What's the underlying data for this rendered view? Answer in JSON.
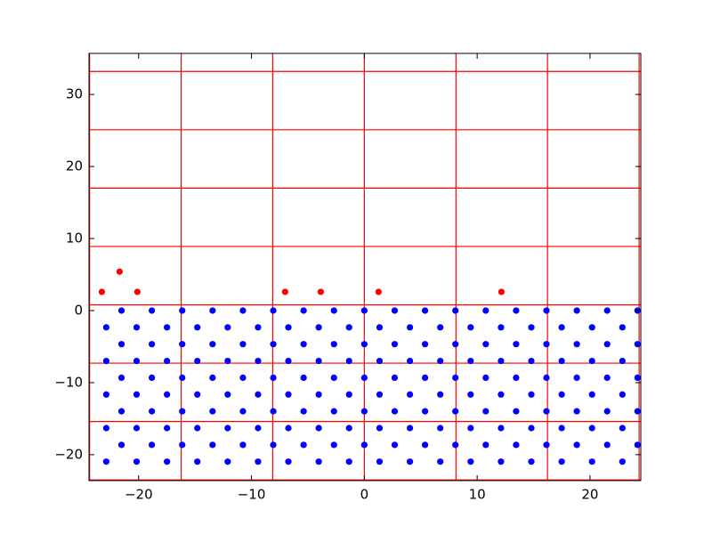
{
  "chart_data": {
    "type": "scatter",
    "xlim": [
      -24.4,
      24.5
    ],
    "ylim": [
      -23.6,
      35.7
    ],
    "xticks": [
      {
        "value": -20,
        "label": "−20"
      },
      {
        "value": -10,
        "label": "−10"
      },
      0,
      10,
      20
    ],
    "yticks": [
      {
        "value": -20,
        "label": "−20"
      },
      {
        "value": -10,
        "label": "−10"
      },
      0,
      10,
      20,
      30
    ],
    "line_color": "#ff0000",
    "vlines": [
      -24.35,
      -16.23,
      -8.12,
      0,
      8.12,
      16.23,
      24.35
    ],
    "hlines": [
      33.2,
      25.1,
      17.0,
      8.9,
      0.8,
      -7.3,
      -15.4,
      -23.5
    ],
    "series": [
      {
        "color": "#0000ff",
        "x": [
          -21.52,
          -18.83,
          -16.14,
          -13.45,
          -10.76,
          -8.07,
          -5.38,
          -2.69,
          0,
          2.69,
          5.38,
          8.07,
          10.76,
          13.45,
          16.14,
          18.83,
          21.52,
          24.21,
          -22.87,
          -20.18,
          -17.49,
          -14.8,
          -12.11,
          -9.42,
          -6.73,
          -4.04,
          -1.35,
          1.35,
          4.04,
          6.73,
          9.42,
          12.11,
          14.8,
          17.49,
          20.18,
          22.87,
          -21.52,
          -18.83,
          -16.14,
          -13.45,
          -10.76,
          -8.07,
          -5.38,
          -2.69,
          0,
          2.69,
          5.38,
          8.07,
          10.76,
          13.45,
          16.14,
          18.83,
          21.52,
          24.21,
          -22.87,
          -20.18,
          -17.49,
          -14.8,
          -12.11,
          -9.42,
          -6.73,
          -4.04,
          -1.35,
          1.35,
          4.04,
          6.73,
          9.42,
          12.11,
          14.8,
          17.49,
          20.18,
          22.87,
          -21.52,
          -18.83,
          -16.14,
          -13.45,
          -10.76,
          -8.07,
          -5.38,
          -2.69,
          0,
          2.69,
          5.38,
          8.07,
          10.76,
          13.45,
          16.14,
          18.83,
          21.52,
          24.21,
          -22.87,
          -20.18,
          -17.49,
          -14.8,
          -12.11,
          -9.42,
          -6.73,
          -4.04,
          -1.35,
          1.35,
          4.04,
          6.73,
          9.42,
          12.11,
          14.8,
          17.49,
          20.18,
          22.87,
          -21.52,
          -18.83,
          -16.14,
          -13.45,
          -10.76,
          -8.07,
          -5.38,
          -2.69,
          0,
          2.69,
          5.38,
          8.07,
          10.76,
          13.45,
          16.14,
          18.83,
          21.52,
          24.21,
          -22.87,
          -20.18,
          -17.49,
          -14.8,
          -12.11,
          -9.42,
          -6.73,
          -4.04,
          -1.35,
          1.35,
          4.04,
          6.73,
          9.42,
          12.11,
          14.8,
          17.49,
          20.18,
          22.87,
          -21.52,
          -18.83,
          -16.14,
          -13.45,
          -10.76,
          -8.07,
          -5.38,
          -2.69,
          0,
          2.69,
          5.38,
          8.07,
          10.76,
          13.45,
          16.14,
          18.83,
          21.52,
          24.21,
          -22.87,
          -20.18,
          -17.49,
          -14.8,
          -12.11,
          -9.42,
          -6.73,
          -4.04,
          -1.35,
          1.35,
          4.04,
          6.73,
          9.42,
          12.11,
          14.8,
          17.49,
          20.18,
          22.87
        ],
        "y": [
          0,
          0,
          0,
          0,
          0,
          0,
          0,
          0,
          0,
          0,
          0,
          0,
          0,
          0,
          0,
          0,
          0,
          0,
          -2.33,
          -2.33,
          -2.33,
          -2.33,
          -2.33,
          -2.33,
          -2.33,
          -2.33,
          -2.33,
          -2.33,
          -2.33,
          -2.33,
          -2.33,
          -2.33,
          -2.33,
          -2.33,
          -2.33,
          -2.33,
          -4.66,
          -4.66,
          -4.66,
          -4.66,
          -4.66,
          -4.66,
          -4.66,
          -4.66,
          -4.66,
          -4.66,
          -4.66,
          -4.66,
          -4.66,
          -4.66,
          -4.66,
          -4.66,
          -4.66,
          -4.66,
          -6.99,
          -6.99,
          -6.99,
          -6.99,
          -6.99,
          -6.99,
          -6.99,
          -6.99,
          -6.99,
          -6.99,
          -6.99,
          -6.99,
          -6.99,
          -6.99,
          -6.99,
          -6.99,
          -6.99,
          -6.99,
          -9.32,
          -9.32,
          -9.32,
          -9.32,
          -9.32,
          -9.32,
          -9.32,
          -9.32,
          -9.32,
          -9.32,
          -9.32,
          -9.32,
          -9.32,
          -9.32,
          -9.32,
          -9.32,
          -9.32,
          -9.32,
          -11.65,
          -11.65,
          -11.65,
          -11.65,
          -11.65,
          -11.65,
          -11.65,
          -11.65,
          -11.65,
          -11.65,
          -11.65,
          -11.65,
          -11.65,
          -11.65,
          -11.65,
          -11.65,
          -11.65,
          -11.65,
          -13.98,
          -13.98,
          -13.98,
          -13.98,
          -13.98,
          -13.98,
          -13.98,
          -13.98,
          -13.98,
          -13.98,
          -13.98,
          -13.98,
          -13.98,
          -13.98,
          -13.98,
          -13.98,
          -13.98,
          -13.98,
          -16.31,
          -16.31,
          -16.31,
          -16.31,
          -16.31,
          -16.31,
          -16.31,
          -16.31,
          -16.31,
          -16.31,
          -16.31,
          -16.31,
          -16.31,
          -16.31,
          -16.31,
          -16.31,
          -16.31,
          -16.31,
          -18.64,
          -18.64,
          -18.64,
          -18.64,
          -18.64,
          -18.64,
          -18.64,
          -18.64,
          -18.64,
          -18.64,
          -18.64,
          -18.64,
          -18.64,
          -18.64,
          -18.64,
          -18.64,
          -18.64,
          -18.64,
          -20.97,
          -20.97,
          -20.97,
          -20.97,
          -20.97,
          -20.97,
          -20.97,
          -20.97,
          -20.97,
          -20.97,
          -20.97,
          -20.97,
          -20.97,
          -20.97,
          -20.97,
          -20.97,
          -20.97,
          -20.97
        ]
      },
      {
        "color": "#ff0000",
        "x": [
          -23.26,
          -21.69,
          -20.11,
          -7.02,
          -3.86,
          1.26,
          12.15
        ],
        "y": [
          2.6,
          5.4,
          2.6,
          2.6,
          2.6,
          2.6,
          2.6
        ]
      }
    ]
  }
}
